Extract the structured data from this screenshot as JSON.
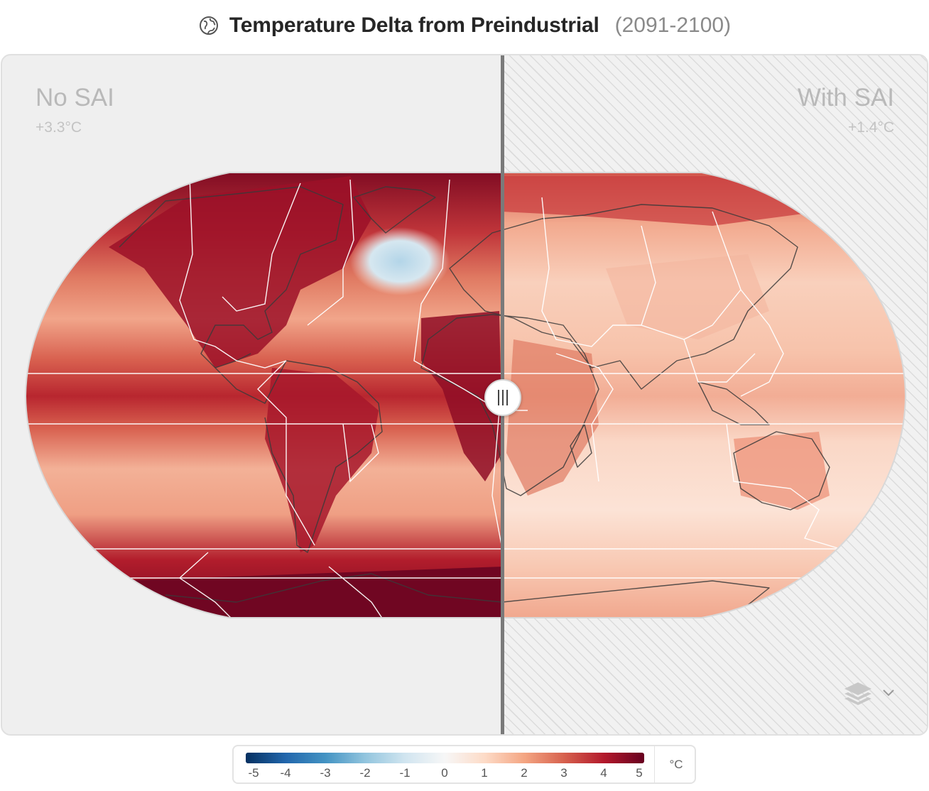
{
  "header": {
    "title": "Temperature Delta from Preindustrial",
    "range": "(2091-2100)"
  },
  "scenarios": {
    "left": {
      "label": "No SAI",
      "value": "+3.3°C"
    },
    "right": {
      "label": "With SAI",
      "value": "+1.4°C"
    }
  },
  "legend": {
    "ticks": [
      "-5",
      "-4",
      "-3",
      "-2",
      "-1",
      "0",
      "1",
      "2",
      "3",
      "4",
      "5"
    ],
    "unit": "°C"
  },
  "colors": {
    "scale": [
      "#053061",
      "#2166ac",
      "#4393c3",
      "#92c5de",
      "#d1e5f0",
      "#f7f7f7",
      "#fddbc7",
      "#f4a582",
      "#d6604d",
      "#b2182b",
      "#67001f"
    ],
    "panel_bg": "#efefef",
    "divider": "#7a7a7a"
  },
  "icons": {
    "title": "globe-icon",
    "map_layers": "layers-icon",
    "map_layers_toggle": "chevron-down-icon",
    "slider": "drag-handle-icon"
  }
}
